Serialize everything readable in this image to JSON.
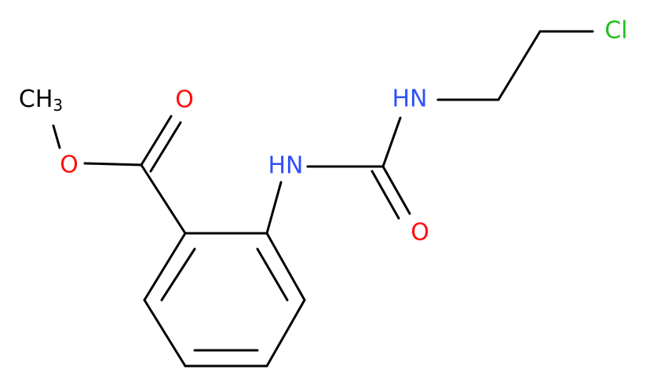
{
  "atoms": [
    {
      "text": "CH",
      "sub": "3"
    },
    {
      "text": "O"
    },
    {
      "text": "O"
    },
    {
      "text": "HN"
    },
    {
      "text": "O"
    },
    {
      "text": "HN"
    },
    {
      "text": "Cl"
    }
  ]
}
